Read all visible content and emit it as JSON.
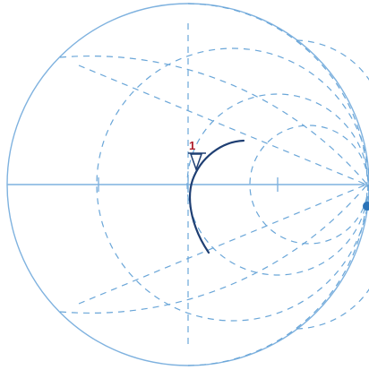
{
  "smith_chart": {
    "marker": {
      "label": "1"
    },
    "colors": {
      "grid": "#7fb2df",
      "grid_dashed": "#6aa6d8",
      "trace": "#1f3f73",
      "marker": "#b01e2c"
    }
  }
}
